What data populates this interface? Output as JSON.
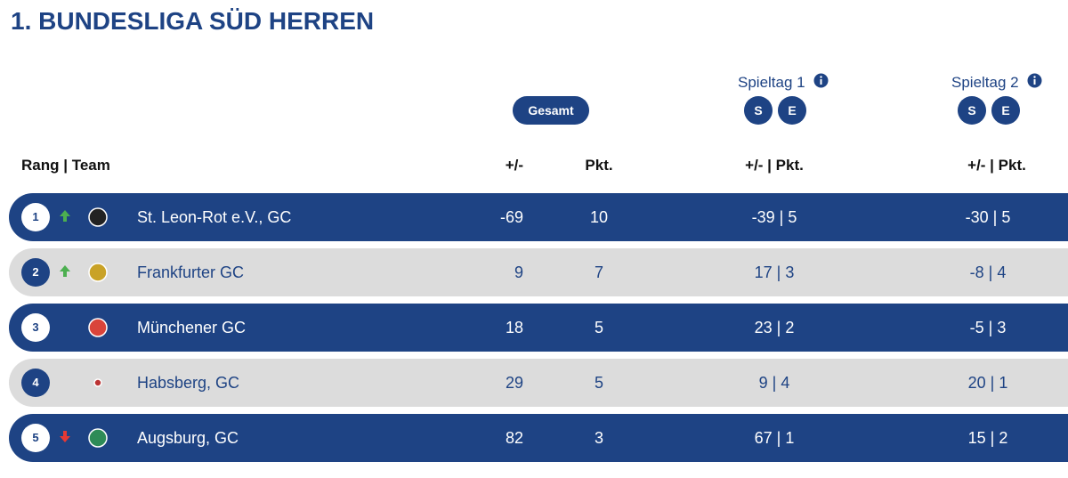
{
  "header": {
    "title": "1. BUNDESLIGA SÜD HERREN"
  },
  "table": {
    "group_labels": {
      "total": "Gesamt",
      "matchday1": "Spieltag 1",
      "matchday2": "Spieltag 2",
      "s": "S",
      "e": "E"
    },
    "columns": [
      "Rang | Team",
      "+/-",
      "Pkt.",
      "+/- | Pkt.",
      "+/- | Pkt."
    ],
    "rows": [
      [
        1,
        "St. Leon-Rot e.V., GC",
        -69,
        10,
        "-39 | 5",
        "-30 | 5"
      ],
      [
        2,
        "Frankfurter GC",
        9,
        7,
        "17 | 3",
        "-8 | 4"
      ],
      [
        3,
        "Münchener GC",
        18,
        5,
        "23 | 2",
        "-5 | 3"
      ],
      [
        4,
        "Habsberg, GC",
        29,
        5,
        "9 | 4",
        "20 | 1"
      ],
      [
        5,
        "Augsburg, GC",
        82,
        3,
        "67 | 1",
        "15 | 2"
      ]
    ]
  }
}
